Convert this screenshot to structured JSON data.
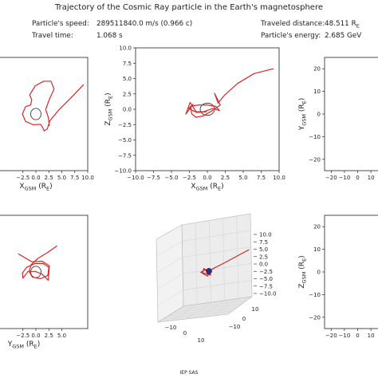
{
  "header": {
    "title": "Trajectory of the Cosmic Ray particle in the Earth's magnetosphere",
    "speed_label": "Particle's speed:",
    "speed_value": "289511840.0 m/s (0.966 c)",
    "time_label": "Travel time:",
    "time_value": "1.068 s",
    "distance_label": "Traveled distance:",
    "distance_value": "48.511 R_E",
    "energy_label": "Particle's energy:",
    "energy_value": "2.685 GeV"
  },
  "footer": "IEP SAS",
  "colors": {
    "trajectory": "#d62728",
    "earth": "#222222",
    "axes": "#222222"
  },
  "chart_data": [
    {
      "type": "line",
      "xlabel": "X_GSM (R_E)",
      "ylabel": "",
      "xlim": [
        -10,
        10
      ],
      "ylim": [
        -10,
        10
      ],
      "xticks": [
        -2.5,
        0.0,
        2.5,
        5.0,
        7.5,
        10.0
      ],
      "yticks": [],
      "earth_circle": {
        "cx": 0,
        "cy": 0,
        "r": 1
      },
      "series": [
        {
          "values": [
            [
              9.2,
              5.2
            ],
            [
              6.6,
              2.7
            ],
            [
              4.3,
              0.6
            ],
            [
              2.7,
              -1.2
            ],
            [
              2.2,
              -2.6
            ],
            [
              1.6,
              -3.0
            ],
            [
              1.3,
              -2.4
            ],
            [
              0.9,
              -1.8
            ],
            [
              -0.5,
              -1.9
            ],
            [
              -2.0,
              -1.3
            ],
            [
              -2.6,
              0.0
            ],
            [
              -2.0,
              1.3
            ],
            [
              -1.0,
              1.6
            ],
            [
              -0.8,
              2.5
            ],
            [
              -1.2,
              3.4
            ],
            [
              -0.1,
              5.0
            ],
            [
              1.5,
              5.8
            ],
            [
              2.9,
              5.8
            ],
            [
              3.5,
              4.4
            ],
            [
              2.6,
              2.6
            ],
            [
              1.9,
              0.8
            ],
            [
              2.4,
              -0.6
            ],
            [
              2.6,
              -2.1
            ]
          ]
        }
      ]
    },
    {
      "type": "line",
      "xlabel": "X_GSM (R_E)",
      "ylabel": "Z_GSM (R_E)",
      "xlim": [
        -10,
        10
      ],
      "ylim": [
        -10,
        10
      ],
      "xticks": [
        -10.0,
        -7.5,
        -5.0,
        -2.5,
        0.0,
        2.5,
        5.0,
        7.5,
        10.0
      ],
      "yticks": [
        -10.0,
        -7.5,
        -5.0,
        -2.5,
        0.0,
        2.5,
        5.0,
        7.5,
        10.0
      ],
      "earth_circle": {
        "cx": 0,
        "cy": 0,
        "r": 1
      },
      "series": [
        {
          "values": [
            [
              9.2,
              6.6
            ],
            [
              6.5,
              5.8
            ],
            [
              4.2,
              4.2
            ],
            [
              2.4,
              2.3
            ],
            [
              1.5,
              1.0
            ],
            [
              1.0,
              2.6
            ],
            [
              1.8,
              0.7
            ],
            [
              0.6,
              -0.3
            ],
            [
              -0.6,
              -1.1
            ],
            [
              -1.6,
              -1.3
            ],
            [
              -2.2,
              -0.7
            ],
            [
              -2.3,
              0.5
            ],
            [
              -1.2,
              0.7
            ],
            [
              -0.1,
              0.7
            ],
            [
              1.1,
              0.5
            ],
            [
              1.7,
              -0.2
            ],
            [
              0.7,
              0.1
            ],
            [
              -0.5,
              -0.4
            ],
            [
              -1.7,
              -0.4
            ],
            [
              -2.6,
              0.1
            ],
            [
              -2.0,
              0.8
            ],
            [
              -3.0,
              -0.8
            ],
            [
              -2.4,
              1.1
            ],
            [
              -1.5,
              -0.5
            ],
            [
              -0.1,
              -0.4
            ]
          ]
        }
      ]
    },
    {
      "type": "line",
      "xlabel": "",
      "ylabel": "Y_GSM (R_E)",
      "xlim": [
        -25,
        25
      ],
      "ylim": [
        -25,
        25
      ],
      "xticks": [
        -20,
        -10,
        0,
        10,
        20
      ],
      "yticks": [
        -20,
        -10,
        0,
        10,
        20
      ],
      "series": []
    },
    {
      "type": "line",
      "xlabel": "Y_GSM (R_E)",
      "ylabel": "",
      "xlim": [
        -10,
        10
      ],
      "ylim": [
        -10,
        10
      ],
      "xticks": [
        -2.5,
        0.0,
        2.5,
        5.0
      ],
      "yticks": [],
      "earth_circle": {
        "cx": 0,
        "cy": 0,
        "r": 1
      },
      "series": [
        {
          "values": [
            [
              4.1,
              4.6
            ],
            [
              2.2,
              3.4
            ],
            [
              0.4,
              2.4
            ],
            [
              -0.9,
              1.3
            ],
            [
              -1.3,
              0.1
            ],
            [
              -0.7,
              -0.9
            ],
            [
              0.9,
              -1.2
            ],
            [
              2.3,
              -0.6
            ],
            [
              2.5,
              0.8
            ],
            [
              1.4,
              1.5
            ],
            [
              -0.2,
              1.5
            ],
            [
              -1.8,
              0.8
            ],
            [
              -2.6,
              -0.2
            ],
            [
              -2.5,
              -1.1
            ],
            [
              -1.5,
              0.1
            ],
            [
              -0.1,
              0.1
            ],
            [
              1.2,
              -0.4
            ],
            [
              2.4,
              -1.5
            ],
            [
              2.6,
              1.1
            ],
            [
              1.2,
              1.9
            ],
            [
              -0.8,
              1.8
            ],
            [
              -2.3,
              2.6
            ],
            [
              -3.4,
              3.2
            ]
          ]
        }
      ]
    },
    {
      "type": "line",
      "xlabel": "",
      "ylabel": "",
      "zlim": [
        -10,
        10
      ],
      "xticks": [
        -10,
        0,
        10
      ],
      "yticks": [
        -10,
        0,
        10
      ],
      "zticks": [
        -10.0,
        -7.5,
        -5.0,
        -2.5,
        0.0,
        2.5,
        5.0,
        7.5,
        10.0
      ],
      "series": [
        {
          "values": [
            [
              9,
              6,
              6
            ],
            [
              6,
              4,
              4
            ],
            [
              3,
              2,
              2
            ],
            [
              1,
              1,
              1
            ],
            [
              0,
              0,
              0
            ],
            [
              -1,
              1,
              -1
            ],
            [
              -2,
              0,
              0
            ],
            [
              -1,
              -1,
              1
            ],
            [
              0,
              1,
              -1
            ],
            [
              -2,
              -1,
              0
            ],
            [
              -1,
              0,
              1
            ],
            [
              0,
              -1,
              0
            ]
          ]
        }
      ]
    },
    {
      "type": "line",
      "xlabel": "",
      "ylabel": "Z_GSM (R_E)",
      "xlim": [
        -25,
        25
      ],
      "ylim": [
        -25,
        25
      ],
      "xticks": [
        -20,
        -10,
        0,
        10,
        20
      ],
      "yticks": [
        -20,
        -10,
        0,
        10,
        20
      ],
      "series": []
    }
  ]
}
